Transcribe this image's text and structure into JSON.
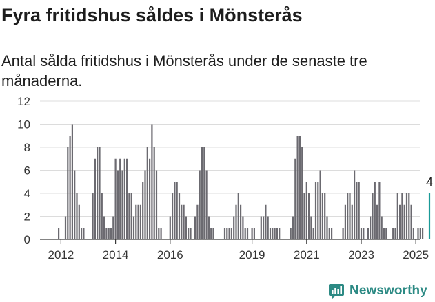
{
  "header": {
    "title": "Fyra fritidshus såldes i Mönsterås",
    "subtitle": "Antal sålda fritidshus i Mönsterås under de senaste tre månaderna."
  },
  "brand": {
    "name": "Newsworthy"
  },
  "chart_data": {
    "type": "bar",
    "title": "Fyra fritidshus såldes i Mönsterås",
    "subtitle": "Antal sålda fritidshus i Mönsterås under de senaste tre månaderna.",
    "xlabel": "",
    "ylabel": "",
    "ylim": [
      0,
      12
    ],
    "yticks": [
      0,
      2,
      4,
      6,
      8,
      10,
      12
    ],
    "xticks": [
      "2012",
      "2014",
      "2016",
      "2019",
      "2021",
      "2023",
      "2025"
    ],
    "grid": true,
    "bar_color": "#6b6a70",
    "highlight_color": "#1a9a98",
    "annotation": {
      "label": "4",
      "category": "2025-07"
    },
    "categories": [
      "2011-12",
      "2012-01",
      "2012-02",
      "2012-03",
      "2012-04",
      "2012-05",
      "2012-06",
      "2012-07",
      "2012-08",
      "2012-09",
      "2012-10",
      "2012-11",
      "2012-12",
      "2013-01",
      "2013-02",
      "2013-03",
      "2013-04",
      "2013-05",
      "2013-06",
      "2013-07",
      "2013-08",
      "2013-09",
      "2013-10",
      "2013-11",
      "2013-12",
      "2014-01",
      "2014-02",
      "2014-03",
      "2014-04",
      "2014-05",
      "2014-06",
      "2014-07",
      "2014-08",
      "2014-09",
      "2014-10",
      "2014-11",
      "2014-12",
      "2015-01",
      "2015-02",
      "2015-03",
      "2015-04",
      "2015-05",
      "2015-06",
      "2015-07",
      "2015-08",
      "2015-09",
      "2015-10",
      "2015-11",
      "2015-12",
      "2016-01",
      "2016-02",
      "2016-03",
      "2016-04",
      "2016-05",
      "2016-06",
      "2016-07",
      "2016-08",
      "2016-09",
      "2016-10",
      "2016-11",
      "2016-12",
      "2017-01",
      "2017-02",
      "2017-03",
      "2017-04",
      "2017-05",
      "2017-06",
      "2017-07",
      "2017-08",
      "2017-09",
      "2017-10",
      "2017-11",
      "2017-12",
      "2018-01",
      "2018-02",
      "2018-03",
      "2018-04",
      "2018-05",
      "2018-06",
      "2018-07",
      "2018-08",
      "2018-09",
      "2018-10",
      "2018-11",
      "2018-12",
      "2019-01",
      "2019-02",
      "2019-03",
      "2019-04",
      "2019-05",
      "2019-06",
      "2019-07",
      "2019-08",
      "2019-09",
      "2019-10",
      "2019-11",
      "2019-12",
      "2020-01",
      "2020-02",
      "2020-03",
      "2020-04",
      "2020-05",
      "2020-06",
      "2020-07",
      "2020-08",
      "2020-09",
      "2020-10",
      "2020-11",
      "2020-12",
      "2021-01",
      "2021-02",
      "2021-03",
      "2021-04",
      "2021-05",
      "2021-06",
      "2021-07",
      "2021-08",
      "2021-09",
      "2021-10",
      "2021-11",
      "2021-12",
      "2022-01",
      "2022-02",
      "2022-03",
      "2022-04",
      "2022-05",
      "2022-06",
      "2022-07",
      "2022-08",
      "2022-09",
      "2022-10",
      "2022-11",
      "2022-12",
      "2023-01",
      "2023-02",
      "2023-03",
      "2023-04",
      "2023-05",
      "2023-06",
      "2023-07",
      "2023-08",
      "2023-09",
      "2023-10",
      "2023-11",
      "2023-12",
      "2024-01",
      "2024-02",
      "2024-03",
      "2024-04",
      "2024-05",
      "2024-06",
      "2024-07",
      "2024-08",
      "2024-09",
      "2024-10",
      "2024-11",
      "2024-12",
      "2025-01",
      "2025-02",
      "2025-03",
      "2025-04",
      "2025-05",
      "2025-06",
      "2025-07"
    ],
    "values": [
      1,
      0,
      0,
      2,
      8,
      9,
      10,
      6,
      4,
      3,
      1,
      1,
      0,
      0,
      0,
      4,
      7,
      8,
      8,
      4,
      2,
      1,
      1,
      1,
      2,
      7,
      6,
      7,
      6,
      7,
      7,
      4,
      4,
      2,
      3,
      3,
      3,
      5,
      6,
      8,
      7,
      10,
      8,
      6,
      1,
      1,
      0,
      0,
      0,
      2,
      4,
      5,
      5,
      4,
      3,
      3,
      2,
      1,
      1,
      0,
      2,
      3,
      6,
      8,
      8,
      6,
      2,
      1,
      1,
      0,
      0,
      0,
      0,
      1,
      1,
      1,
      1,
      2,
      3,
      4,
      3,
      2,
      1,
      1,
      0,
      1,
      1,
      0,
      0,
      2,
      2,
      3,
      2,
      1,
      1,
      1,
      1,
      1,
      0,
      0,
      0,
      0,
      1,
      2,
      7,
      9,
      9,
      8,
      4,
      5,
      4,
      2,
      1,
      5,
      5,
      6,
      4,
      4,
      2,
      1,
      1,
      0,
      0,
      0,
      0,
      1,
      3,
      4,
      4,
      3,
      6,
      5,
      5,
      1,
      1,
      0,
      1,
      2,
      4,
      5,
      3,
      5,
      2,
      1,
      1,
      0,
      0,
      1,
      1,
      4,
      3,
      4,
      3,
      4,
      4,
      3,
      1,
      0,
      1,
      1,
      1,
      0,
      0,
      4
    ]
  }
}
